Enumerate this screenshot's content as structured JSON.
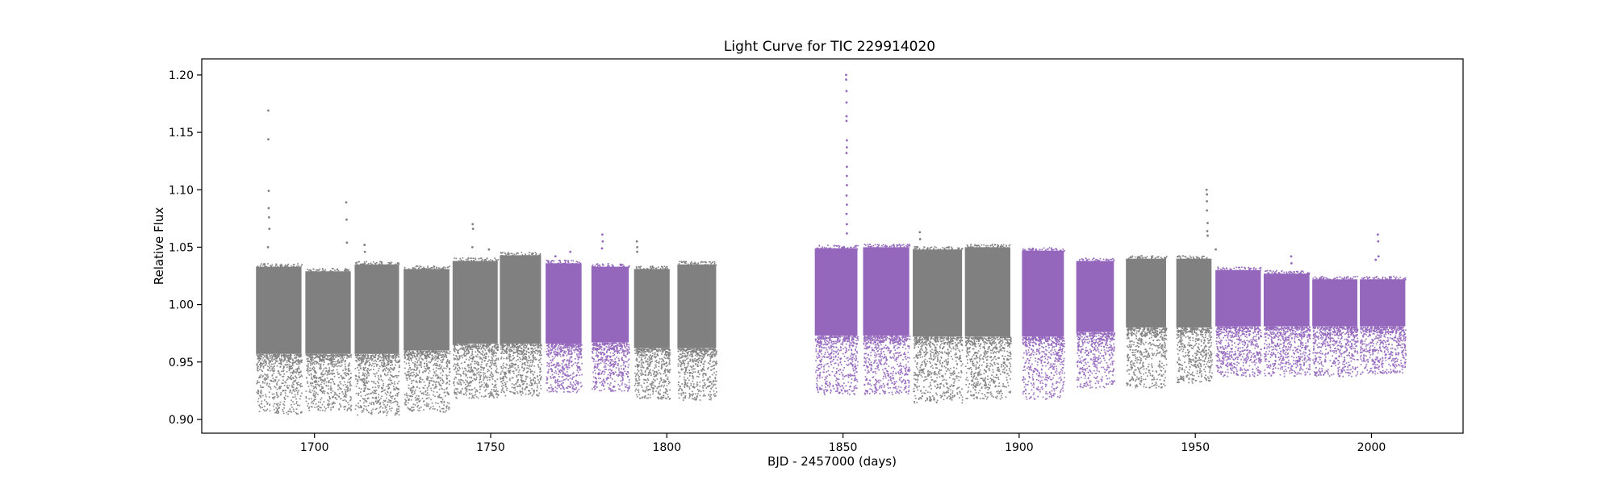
{
  "chart_data": {
    "type": "scatter",
    "title": "Light Curve for TIC 229914020",
    "xlabel": "BJD - 2457000 (days)",
    "ylabel": "Relative Flux",
    "xlim": [
      1668,
      2026
    ],
    "ylim": [
      0.888,
      1.214
    ],
    "x_ticks": [
      1700,
      1750,
      1800,
      1850,
      1900,
      1950,
      2000
    ],
    "y_ticks": [
      0.9,
      0.95,
      1.0,
      1.05,
      1.1,
      1.15,
      1.2
    ],
    "x_tick_labels": [
      "1700",
      "1750",
      "1800",
      "1850",
      "1900",
      "1950",
      "2000"
    ],
    "y_tick_labels": [
      "0.90",
      "0.95",
      "1.00",
      "1.05",
      "1.10",
      "1.15",
      "1.20"
    ],
    "grid": false,
    "legend": "none",
    "colors": {
      "gray": "#808080",
      "purple": "#9467bd"
    },
    "segments": [
      {
        "x": [
          1683.4,
          1696.3
        ],
        "core": [
          0.957,
          1.033
        ],
        "tail": [
          0.905,
          0.957
        ],
        "color": "gray",
        "outliers": [
          [
            1686.9,
            1.169
          ],
          [
            1686.9,
            1.144
          ],
          [
            1687.0,
            1.099
          ],
          [
            1687.0,
            1.084
          ],
          [
            1687.1,
            1.076
          ],
          [
            1687.2,
            1.066
          ],
          [
            1686.8,
            1.05
          ]
        ]
      },
      {
        "x": [
          1697.4,
          1710.3
        ],
        "core": [
          0.957,
          1.029
        ],
        "tail": [
          0.908,
          0.957
        ],
        "color": "gray",
        "outliers": [
          [
            1709.0,
            1.089
          ],
          [
            1709.1,
            1.074
          ],
          [
            1709.2,
            1.054
          ]
        ]
      },
      {
        "x": [
          1711.4,
          1724.0
        ],
        "core": [
          0.957,
          1.035
        ],
        "tail": [
          0.904,
          0.957
        ],
        "color": "gray",
        "outliers": [
          [
            1714.2,
            1.052
          ],
          [
            1714.3,
            1.046
          ]
        ]
      },
      {
        "x": [
          1725.3,
          1738.3
        ],
        "core": [
          0.96,
          1.031
        ],
        "tail": [
          0.907,
          0.96
        ],
        "color": "gray",
        "outliers": []
      },
      {
        "x": [
          1739.2,
          1752.0
        ],
        "core": [
          0.966,
          1.038
        ],
        "tail": [
          0.919,
          0.966
        ],
        "color": "gray",
        "outliers": [
          [
            1744.9,
            1.07
          ],
          [
            1745.0,
            1.066
          ],
          [
            1744.8,
            1.05
          ],
          [
            1749.5,
            1.048
          ]
        ]
      },
      {
        "x": [
          1752.6,
          1764.3
        ],
        "core": [
          0.966,
          1.043
        ],
        "tail": [
          0.921,
          0.966
        ],
        "color": "gray",
        "outliers": []
      },
      {
        "x": [
          1765.6,
          1775.8
        ],
        "core": [
          0.966,
          1.036
        ],
        "tail": [
          0.924,
          0.966
        ],
        "color": "purple",
        "outliers": [
          [
            1772.6,
            1.046
          ],
          [
            1768.4,
            1.042
          ]
        ]
      },
      {
        "x": [
          1778.6,
          1789.2
        ],
        "core": [
          0.967,
          1.033
        ],
        "tail": [
          0.925,
          0.967
        ],
        "color": "purple",
        "outliers": [
          [
            1781.7,
            1.061
          ],
          [
            1781.8,
            1.055
          ],
          [
            1781.6,
            1.049
          ]
        ]
      },
      {
        "x": [
          1790.7,
          1800.8
        ],
        "core": [
          0.962,
          1.031
        ],
        "tail": [
          0.918,
          0.962
        ],
        "color": "gray",
        "outliers": [
          [
            1791.5,
            1.055
          ],
          [
            1791.6,
            1.05
          ],
          [
            1791.6,
            1.046
          ]
        ]
      },
      {
        "x": [
          1803.0,
          1814.0
        ],
        "core": [
          0.962,
          1.035
        ],
        "tail": [
          0.917,
          0.962
        ],
        "color": "gray",
        "outliers": []
      },
      {
        "x": [
          1842.0,
          1854.1
        ],
        "core": [
          0.973,
          1.049
        ],
        "tail": [
          0.922,
          0.973
        ],
        "color": "purple",
        "outliers": [
          [
            1850.9,
            1.2
          ],
          [
            1850.9,
            1.196
          ],
          [
            1851.0,
            1.186
          ],
          [
            1851.0,
            1.176
          ],
          [
            1851.0,
            1.164
          ],
          [
            1851.0,
            1.16
          ],
          [
            1851.1,
            1.143
          ],
          [
            1851.1,
            1.137
          ],
          [
            1851.0,
            1.132
          ],
          [
            1851.1,
            1.12
          ],
          [
            1851.1,
            1.112
          ],
          [
            1851.1,
            1.104
          ],
          [
            1851.0,
            1.095
          ],
          [
            1851.1,
            1.087
          ],
          [
            1851.0,
            1.079
          ],
          [
            1851.1,
            1.07
          ],
          [
            1851.1,
            1.062
          ]
        ]
      },
      {
        "x": [
          1855.7,
          1868.8
        ],
        "core": [
          0.973,
          1.05
        ],
        "tail": [
          0.922,
          0.973
        ],
        "color": "purple",
        "outliers": []
      },
      {
        "x": [
          1869.8,
          1883.8
        ],
        "core": [
          0.972,
          1.048
        ],
        "tail": [
          0.915,
          0.972
        ],
        "color": "gray",
        "outliers": [
          [
            1871.8,
            1.063
          ],
          [
            1871.9,
            1.057
          ]
        ]
      },
      {
        "x": [
          1884.6,
          1897.5
        ],
        "core": [
          0.972,
          1.05
        ],
        "tail": [
          0.918,
          0.972
        ],
        "color": "gray",
        "outliers": []
      },
      {
        "x": [
          1900.8,
          1912.7
        ],
        "core": [
          0.972,
          1.047
        ],
        "tail": [
          0.918,
          0.972
        ],
        "color": "purple",
        "outliers": []
      },
      {
        "x": [
          1916.2,
          1926.9
        ],
        "core": [
          0.976,
          1.038
        ],
        "tail": [
          0.928,
          0.976
        ],
        "color": "purple",
        "outliers": []
      },
      {
        "x": [
          1930.3,
          1941.7
        ],
        "core": [
          0.98,
          1.04
        ],
        "tail": [
          0.928,
          0.98
        ],
        "color": "gray",
        "outliers": []
      },
      {
        "x": [
          1944.6,
          1954.6
        ],
        "core": [
          0.98,
          1.04
        ],
        "tail": [
          0.932,
          0.98
        ],
        "color": "gray",
        "outliers": [
          [
            1953.2,
            1.1
          ],
          [
            1953.3,
            1.096
          ],
          [
            1953.3,
            1.09
          ],
          [
            1953.3,
            1.082
          ],
          [
            1953.5,
            1.071
          ],
          [
            1953.4,
            1.064
          ],
          [
            1953.5,
            1.06
          ],
          [
            1955.8,
            1.048
          ]
        ]
      },
      {
        "x": [
          1955.7,
          1968.6
        ],
        "core": [
          0.981,
          1.03
        ],
        "tail": [
          0.938,
          0.981
        ],
        "color": "purple",
        "outliers": []
      },
      {
        "x": [
          1969.4,
          1982.4
        ],
        "core": [
          0.981,
          1.027
        ],
        "tail": [
          0.938,
          0.981
        ],
        "color": "purple",
        "outliers": [
          [
            1977.2,
            1.042
          ],
          [
            1977.3,
            1.036
          ]
        ]
      },
      {
        "x": [
          1983.2,
          1996.0
        ],
        "core": [
          0.981,
          1.022
        ],
        "tail": [
          0.938,
          0.981
        ],
        "color": "purple",
        "outliers": []
      },
      {
        "x": [
          1996.7,
          2009.6
        ],
        "core": [
          0.981,
          1.022
        ],
        "tail": [
          0.94,
          0.981
        ],
        "color": "purple",
        "outliers": [
          [
            2001.8,
            1.061
          ],
          [
            2001.9,
            1.055
          ],
          [
            2002.0,
            1.042
          ],
          [
            2001.2,
            1.039
          ]
        ]
      }
    ]
  }
}
